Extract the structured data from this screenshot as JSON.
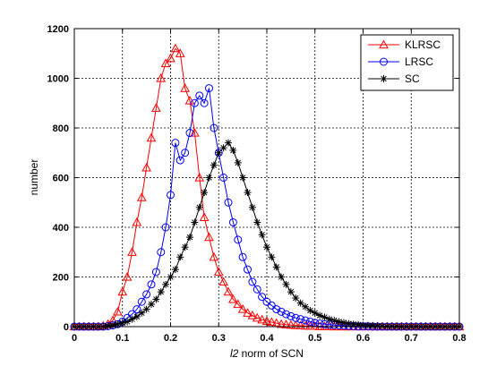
{
  "chart_data": {
    "type": "line",
    "xlabel": {
      "italic": "l2",
      "rest": " norm of SCN"
    },
    "ylabel": "number",
    "xlim": [
      0,
      0.8
    ],
    "ylim": [
      0,
      1200
    ],
    "x_ticks": [
      "0",
      "0.1",
      "0.2",
      "0.3",
      "0.4",
      "0.5",
      "0.6",
      "0.7",
      "0.8"
    ],
    "y_ticks": [
      "0",
      "200",
      "400",
      "600",
      "800",
      "1000",
      "1200"
    ],
    "grid": true,
    "legend_position": "top-right",
    "series": [
      {
        "name": "KLRSC",
        "color": "#ff0000",
        "marker": "triangle",
        "x": [
          0.0,
          0.01,
          0.02,
          0.03,
          0.04,
          0.05,
          0.06,
          0.07,
          0.08,
          0.09,
          0.1,
          0.11,
          0.12,
          0.13,
          0.14,
          0.15,
          0.16,
          0.17,
          0.18,
          0.19,
          0.2,
          0.21,
          0.22,
          0.23,
          0.24,
          0.25,
          0.26,
          0.27,
          0.28,
          0.29,
          0.3,
          0.31,
          0.32,
          0.33,
          0.34,
          0.35,
          0.36,
          0.37,
          0.38,
          0.39,
          0.4,
          0.41,
          0.42,
          0.43,
          0.44,
          0.45,
          0.46,
          0.47,
          0.48,
          0.49,
          0.5,
          0.51,
          0.52,
          0.53,
          0.54,
          0.55,
          0.56,
          0.57,
          0.58,
          0.59,
          0.6,
          0.61,
          0.62,
          0.63,
          0.64,
          0.65,
          0.66,
          0.67,
          0.68,
          0.69,
          0.7,
          0.71,
          0.72,
          0.73,
          0.74,
          0.75,
          0.76,
          0.77,
          0.78,
          0.79,
          0.8
        ],
        "y": [
          0,
          0,
          0,
          0,
          0,
          0,
          3,
          10,
          25,
          60,
          140,
          200,
          300,
          420,
          520,
          640,
          760,
          880,
          1000,
          1060,
          1080,
          1120,
          1100,
          960,
          910,
          780,
          600,
          440,
          360,
          280,
          220,
          180,
          140,
          110,
          90,
          70,
          55,
          45,
          35,
          28,
          22,
          18,
          14,
          10,
          8,
          6,
          5,
          4,
          3,
          2,
          2,
          1,
          1,
          1,
          0,
          0,
          0,
          0,
          0,
          0,
          0,
          0,
          0,
          0,
          0,
          0,
          0,
          0,
          0,
          0,
          0,
          0,
          0,
          0,
          0,
          0,
          0,
          0,
          0,
          0,
          0
        ]
      },
      {
        "name": "LRSC",
        "color": "#0000ff",
        "marker": "circle",
        "x": [
          0.0,
          0.01,
          0.02,
          0.03,
          0.04,
          0.05,
          0.06,
          0.07,
          0.08,
          0.09,
          0.1,
          0.11,
          0.12,
          0.13,
          0.14,
          0.15,
          0.16,
          0.17,
          0.18,
          0.19,
          0.2,
          0.21,
          0.22,
          0.23,
          0.24,
          0.25,
          0.26,
          0.27,
          0.28,
          0.29,
          0.3,
          0.31,
          0.32,
          0.33,
          0.34,
          0.35,
          0.36,
          0.37,
          0.38,
          0.39,
          0.4,
          0.41,
          0.42,
          0.43,
          0.44,
          0.45,
          0.46,
          0.47,
          0.48,
          0.49,
          0.5,
          0.51,
          0.52,
          0.53,
          0.54,
          0.55,
          0.56,
          0.57,
          0.58,
          0.59,
          0.6,
          0.61,
          0.62,
          0.63,
          0.64,
          0.65,
          0.66,
          0.67,
          0.68,
          0.69,
          0.7,
          0.71,
          0.72,
          0.73,
          0.74,
          0.75,
          0.76,
          0.77,
          0.78,
          0.79,
          0.8
        ],
        "y": [
          0,
          0,
          0,
          0,
          0,
          0,
          0,
          2,
          5,
          10,
          20,
          35,
          50,
          70,
          100,
          130,
          170,
          220,
          300,
          400,
          530,
          740,
          670,
          700,
          780,
          900,
          930,
          900,
          960,
          800,
          700,
          600,
          500,
          420,
          350,
          280,
          230,
          180,
          150,
          120,
          100,
          85,
          70,
          60,
          50,
          42,
          35,
          30,
          25,
          20,
          15,
          12,
          10,
          8,
          6,
          5,
          4,
          3,
          2,
          1,
          1,
          1,
          0,
          0,
          0,
          0,
          0,
          0,
          0,
          0,
          0,
          0,
          0,
          0,
          0,
          0,
          0,
          0,
          0,
          0,
          0
        ]
      },
      {
        "name": "SC",
        "color": "#000000",
        "marker": "star",
        "x": [
          0.0,
          0.01,
          0.02,
          0.03,
          0.04,
          0.05,
          0.06,
          0.07,
          0.08,
          0.09,
          0.1,
          0.11,
          0.12,
          0.13,
          0.14,
          0.15,
          0.16,
          0.17,
          0.18,
          0.19,
          0.2,
          0.21,
          0.22,
          0.23,
          0.24,
          0.25,
          0.26,
          0.27,
          0.28,
          0.29,
          0.3,
          0.31,
          0.32,
          0.33,
          0.34,
          0.35,
          0.36,
          0.37,
          0.38,
          0.39,
          0.4,
          0.41,
          0.42,
          0.43,
          0.44,
          0.45,
          0.46,
          0.47,
          0.48,
          0.49,
          0.5,
          0.51,
          0.52,
          0.53,
          0.54,
          0.55,
          0.56,
          0.57,
          0.58,
          0.59,
          0.6,
          0.61,
          0.62,
          0.63,
          0.64,
          0.65,
          0.66,
          0.67,
          0.68,
          0.69,
          0.7,
          0.71,
          0.72,
          0.73,
          0.74,
          0.75,
          0.76,
          0.77,
          0.78,
          0.79,
          0.8
        ],
        "y": [
          0,
          0,
          0,
          0,
          0,
          0,
          0,
          3,
          5,
          10,
          15,
          20,
          30,
          40,
          55,
          70,
          90,
          110,
          140,
          170,
          200,
          230,
          280,
          320,
          360,
          420,
          480,
          540,
          600,
          650,
          700,
          720,
          740,
          710,
          660,
          600,
          540,
          480,
          420,
          370,
          320,
          280,
          240,
          200,
          170,
          140,
          115,
          95,
          80,
          65,
          55,
          45,
          38,
          30,
          25,
          20,
          16,
          12,
          10,
          8,
          6,
          5,
          4,
          3,
          2,
          1,
          1,
          1,
          0,
          0,
          0,
          0,
          0,
          0,
          0,
          0,
          0,
          0,
          0,
          0,
          0
        ]
      }
    ]
  }
}
